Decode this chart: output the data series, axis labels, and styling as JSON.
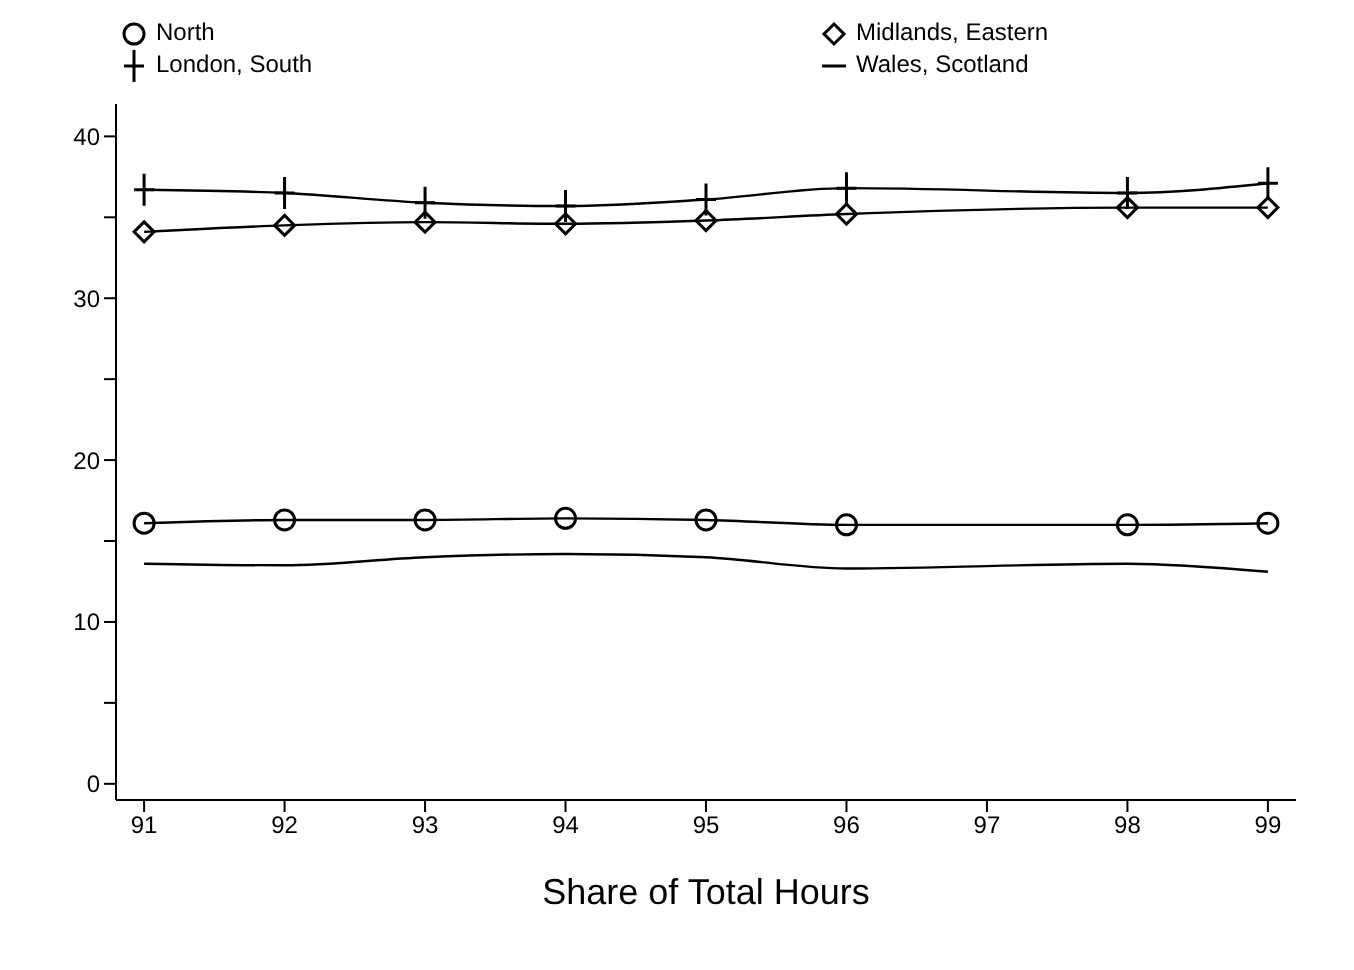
{
  "chart_data": {
    "type": "line",
    "xlabel": "Share of Total Hours",
    "x": [
      91,
      92,
      93,
      94,
      95,
      96,
      97,
      98,
      99
    ],
    "xlim": [
      90.8,
      99.2
    ],
    "xticks": [
      91,
      92,
      93,
      94,
      95,
      96,
      97,
      98,
      99
    ],
    "ylim": [
      -1,
      42
    ],
    "yticks": [
      0,
      {
        "value": 5,
        "label": null
      },
      10,
      {
        "value": 15,
        "label": null
      },
      20,
      {
        "value": 25,
        "label": null
      },
      30,
      {
        "value": 35,
        "label": null
      },
      40
    ],
    "legend": "top",
    "line_style": "solid",
    "series": [
      {
        "name": "North",
        "color": "#000000",
        "marker": "circle",
        "values": [
          16.1,
          16.3,
          16.3,
          16.4,
          16.3,
          16.0,
          null,
          16.0,
          16.1
        ]
      },
      {
        "name": "London, South",
        "color": "#000000",
        "marker": "cross",
        "values": [
          36.7,
          36.5,
          35.9,
          35.7,
          36.1,
          36.8,
          null,
          36.5,
          37.1
        ]
      },
      {
        "name": "Midlands, Eastern",
        "color": "#000000",
        "marker": "diamond",
        "values": [
          34.1,
          34.5,
          34.7,
          34.6,
          34.8,
          35.2,
          null,
          35.6,
          35.6
        ]
      },
      {
        "name": "Wales, Scotland",
        "color": "#000000",
        "marker": "none",
        "values": [
          13.6,
          13.5,
          14.0,
          14.2,
          14.0,
          13.3,
          null,
          13.6,
          13.1
        ]
      }
    ]
  }
}
